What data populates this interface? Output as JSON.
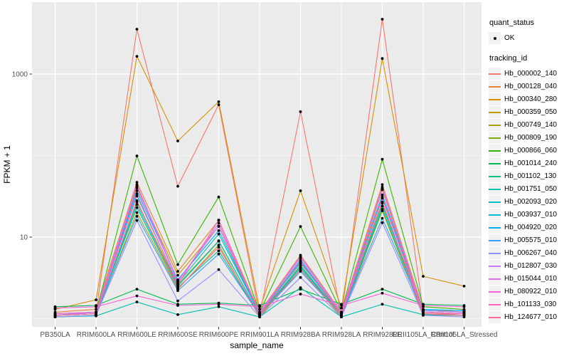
{
  "figure": {
    "background": "#FFFFFF",
    "panel_bg": "#EBEBEB",
    "grid_color": "#FFFFFF",
    "axis_text_color": "#4D4D4D",
    "axis_title_color": "#000000",
    "point_color": "#000000"
  },
  "chart_data": {
    "type": "line",
    "title": "",
    "xlabel": "sample_name",
    "ylabel": "FPKM + 1",
    "y_scale": "log10",
    "y_tick_labels": [
      "10",
      "1000"
    ],
    "y_tick_values": [
      10,
      1000
    ],
    "y_minor_values": [
      1,
      100
    ],
    "ylim_log": [
      0.9,
      4900
    ],
    "grid": true,
    "legend_position": "right",
    "point_marker": "filled-circle",
    "categories": [
      "PB350LA",
      "RRIM600LA",
      "RRIM600LE",
      "RRIM600SE",
      "RRIM600PE",
      "RRIM901LA",
      "RRIM928BA",
      "RRIM928LA",
      "RRIM928LE",
      "RRII105LA_Control",
      "RRII105LA_Stressed"
    ],
    "series": [
      {
        "name": "Hb_000002_140",
        "color": "#F8766D",
        "values": [
          1.1,
          1.2,
          3550,
          42,
          420,
          1.1,
          345,
          1.1,
          4700,
          1.2,
          1.1
        ]
      },
      {
        "name": "Hb_000128_040",
        "color": "#EA8331",
        "values": [
          1.2,
          1.3,
          47,
          3.8,
          16,
          1.2,
          6.0,
          1.2,
          44,
          1.3,
          1.2
        ]
      },
      {
        "name": "Hb_000340_280",
        "color": "#D89000",
        "values": [
          1.3,
          1.7,
          1650,
          151,
          457,
          1.3,
          37,
          1.35,
          1550,
          3.3,
          2.5
        ]
      },
      {
        "name": "Hb_000359_050",
        "color": "#C09B00",
        "values": [
          1.1,
          1.15,
          40,
          3.4,
          13.5,
          1.1,
          5.0,
          1.1,
          38,
          1.2,
          1.15
        ]
      },
      {
        "name": "Hb_000749_140",
        "color": "#A3A500",
        "values": [
          1.05,
          1.1,
          20,
          2.3,
          8.0,
          1.05,
          4.0,
          1.05,
          21,
          1.1,
          1.1
        ]
      },
      {
        "name": "Hb_000809_190",
        "color": "#7CAE00",
        "values": [
          1.05,
          1.1,
          27,
          2.6,
          9.0,
          1.1,
          4.5,
          1.1,
          26,
          1.15,
          1.1
        ]
      },
      {
        "name": "Hb_000866_060",
        "color": "#39B600",
        "values": [
          1.1,
          1.2,
          99,
          4.6,
          31,
          1.2,
          13.5,
          1.2,
          90,
          1.4,
          1.3
        ]
      },
      {
        "name": "Hb_001014_240",
        "color": "#00BB4E",
        "values": [
          1.4,
          1.45,
          2.3,
          1.5,
          1.55,
          1.45,
          2.3,
          1.5,
          2.3,
          1.5,
          1.45
        ]
      },
      {
        "name": "Hb_001102_130",
        "color": "#00C087",
        "values": [
          1.1,
          1.15,
          23,
          2.4,
          6.8,
          1.1,
          4.2,
          1.1,
          22,
          1.2,
          1.15
        ]
      },
      {
        "name": "Hb_001751_050",
        "color": "#00C0AF",
        "values": [
          1.05,
          1.08,
          1.6,
          1.12,
          1.4,
          1.05,
          2.4,
          1.05,
          1.5,
          1.12,
          1.1
        ]
      },
      {
        "name": "Hb_002093_020",
        "color": "#00BFC4",
        "values": [
          1.1,
          1.2,
          32,
          2.7,
          10.9,
          1.15,
          4.8,
          1.15,
          30,
          1.25,
          1.2
        ]
      },
      {
        "name": "Hb_003937_010",
        "color": "#00BCD8",
        "values": [
          1.1,
          1.15,
          25,
          2.5,
          8.9,
          1.1,
          4.4,
          1.1,
          24,
          1.28,
          1.26
        ]
      },
      {
        "name": "Hb_004920_020",
        "color": "#00B0F6",
        "values": [
          1.15,
          1.2,
          37,
          3.0,
          12,
          1.15,
          5.2,
          1.15,
          33,
          1.3,
          1.25
        ]
      },
      {
        "name": "Hb_005575_010",
        "color": "#35A2FF",
        "values": [
          1.1,
          1.15,
          18,
          2.2,
          6.2,
          1.1,
          3.8,
          1.1,
          17,
          1.2,
          1.15
        ]
      },
      {
        "name": "Hb_006267_040",
        "color": "#9590FF",
        "values": [
          1.05,
          1.1,
          16,
          1.65,
          4.0,
          1.05,
          3.2,
          1.05,
          15,
          1.1,
          1.05
        ]
      },
      {
        "name": "Hb_012807_030",
        "color": "#C77CFF",
        "values": [
          1.1,
          1.2,
          44,
          2.9,
          13.6,
          1.2,
          5.5,
          1.2,
          39,
          1.25,
          1.2
        ]
      },
      {
        "name": "Hb_015044_010",
        "color": "#E76BF3",
        "values": [
          1.1,
          1.15,
          42,
          2.8,
          14.8,
          1.15,
          5.8,
          1.15,
          41,
          1.2,
          1.15
        ]
      },
      {
        "name": "Hb_080922_010",
        "color": "#FA62DB",
        "values": [
          1.35,
          1.4,
          1.9,
          1.45,
          1.5,
          1.4,
          2.0,
          1.45,
          2.05,
          1.45,
          1.4
        ]
      },
      {
        "name": "Hb_101133_030",
        "color": "#FF61C3",
        "values": [
          1.15,
          1.2,
          34,
          2.6,
          16.2,
          1.15,
          5.0,
          1.15,
          31,
          1.2,
          1.15
        ]
      },
      {
        "name": "Hb_124677_010",
        "color": "#FF6A98",
        "values": [
          1.1,
          1.15,
          28,
          2.35,
          7.5,
          1.1,
          4.0,
          1.1,
          27,
          1.15,
          1.1
        ]
      }
    ],
    "legend": {
      "quant_status_title": "quant_status",
      "quant_status_items": [
        {
          "label": "OK",
          "shape": "point"
        }
      ],
      "tracking_title": "tracking_id"
    }
  }
}
